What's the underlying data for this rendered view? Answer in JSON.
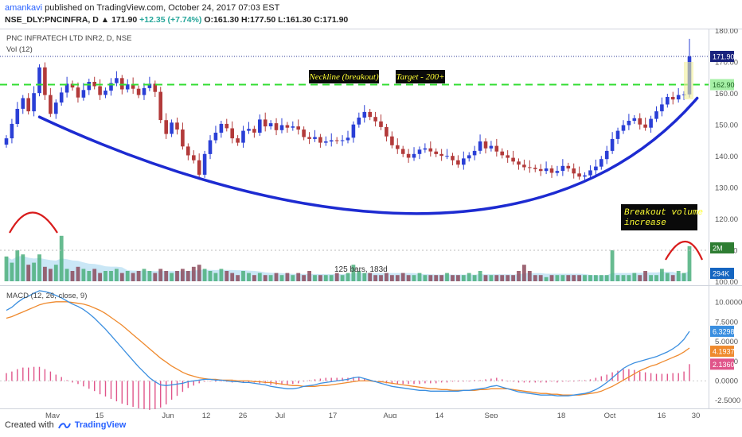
{
  "header": {
    "author": "amankavi",
    "published": "published on TradingView.com, October 24, 2017 07:03 EST",
    "symbol": "NSE_DLY:PNCINFRA, D",
    "last": "171.90",
    "change": "+12.35 (+7.74%)",
    "ohlc": "O:161.30 H:177.50 L:161.30 C:171.90"
  },
  "footer": {
    "created_with": "Created with",
    "brand": "TradingView"
  },
  "colors": {
    "up": "#2a3fd6",
    "down": "#b23a3a",
    "vol_up": "#4caf7d",
    "vol_down": "#8c4a5c",
    "trend": "#1d2bd1",
    "neckline": "#33dd33",
    "macd": "#3b8fe0",
    "signal": "#ef8a2e",
    "hist": "#e0558a"
  },
  "chart_data": [
    {
      "type": "candlestick",
      "title": "PNC INFRATECH LTD INR2, D, NSE",
      "ylim": [
        100,
        180
      ],
      "y_ticks": [
        "180.00",
        "170.00",
        "160.00",
        "150.00",
        "140.00",
        "130.00",
        "120.00",
        "110.00",
        "100.00"
      ],
      "x_ticks": [
        "May",
        "15",
        "Jun",
        "12",
        "26",
        "Jul",
        "17",
        "Aug",
        "14",
        "Sep",
        "18",
        "Oct",
        "16",
        "30"
      ],
      "price_labels": {
        "last": "171.90",
        "neckline": "162.90"
      },
      "neckline": 162.9,
      "annotations": [
        "Neckline (breakout)",
        "Target - 200+",
        "Breakout volume increase"
      ],
      "bars_label": "125 bars, 183d",
      "close": [
        145.8,
        150.4,
        155.2,
        158.6,
        154.4,
        160.2,
        168.4,
        159.6,
        153.6,
        157.2,
        160.4,
        163.2,
        162.0,
        158.8,
        161.2,
        163.8,
        162.4,
        159.6,
        161.0,
        163.4,
        165.0,
        161.4,
        163.0,
        161.6,
        159.6,
        161.8,
        163.2,
        160.6,
        151.6,
        147.2,
        150.8,
        148.6,
        143.2,
        140.4,
        138.8,
        134.2,
        140.8,
        145.2,
        147.6,
        150.4,
        149.0,
        145.8,
        144.4,
        148.2,
        148.8,
        147.6,
        151.8,
        149.6,
        150.6,
        148.4,
        150.0,
        149.2,
        149.6,
        148.6,
        146.2,
        145.6,
        146.2,
        144.4,
        144.8,
        145.2,
        145.0,
        145.2,
        146.0,
        150.2,
        152.4,
        154.2,
        152.6,
        151.2,
        149.4,
        146.4,
        143.6,
        142.4,
        140.8,
        139.6,
        140.8,
        142.2,
        142.6,
        141.6,
        140.8,
        140.2,
        140.2,
        138.8,
        137.4,
        139.4,
        140.4,
        141.8,
        144.8,
        142.6,
        143.4,
        141.6,
        140.4,
        139.6,
        138.4,
        137.4,
        136.6,
        136.4,
        136.0,
        135.4,
        136.2,
        134.8,
        135.4,
        137.0,
        136.2,
        134.6,
        133.6,
        134.0,
        135.6,
        136.8,
        139.2,
        141.8,
        145.6,
        148.2,
        150.0,
        151.4,
        152.2,
        150.2,
        149.2,
        152.0,
        154.4,
        156.6,
        159.0,
        158.2,
        159.6,
        159.8,
        171.9
      ],
      "volume_unit": "M",
      "volume_labels": [
        "2M",
        "294K"
      ],
      "volume": [
        1.2,
        0.9,
        1.5,
        1.3,
        0.8,
        0.9,
        1.3,
        0.7,
        0.6,
        0.8,
        2.2,
        0.6,
        0.5,
        0.7,
        0.6,
        0.5,
        0.6,
        0.4,
        0.5,
        0.5,
        0.6,
        0.4,
        0.5,
        0.4,
        0.5,
        0.6,
        0.5,
        0.4,
        0.6,
        0.5,
        0.4,
        0.5,
        0.6,
        0.5,
        0.7,
        0.8,
        0.6,
        0.5,
        0.4,
        0.6,
        0.5,
        0.4,
        0.3,
        0.5,
        0.4,
        0.3,
        0.4,
        0.3,
        0.3,
        0.4,
        0.3,
        0.4,
        0.3,
        0.4,
        0.3,
        0.5,
        0.3,
        0.3,
        0.3,
        0.3,
        0.4,
        0.3,
        0.4,
        0.8,
        0.5,
        0.4,
        0.4,
        0.3,
        0.3,
        0.4,
        0.3,
        0.3,
        0.4,
        0.3,
        0.3,
        0.4,
        0.3,
        0.3,
        0.3,
        0.3,
        0.4,
        0.3,
        0.3,
        0.3,
        0.4,
        0.3,
        0.5,
        0.3,
        0.3,
        0.3,
        0.3,
        0.3,
        0.3,
        0.5,
        0.8,
        0.5,
        0.3,
        0.3,
        0.2,
        0.3,
        0.3,
        0.3,
        0.3,
        0.3,
        0.3,
        0.3,
        0.3,
        0.3,
        0.3,
        0.3,
        1.5,
        0.3,
        0.3,
        0.3,
        0.4,
        0.3,
        0.5,
        0.3,
        0.3,
        0.6,
        0.4,
        0.3,
        0.5,
        0.4,
        1.7
      ]
    },
    {
      "type": "line",
      "title": "MACD (12, 26, close, 9)",
      "ylim": [
        -3.2,
        12
      ],
      "y_ticks": [
        "10.0000",
        "7.5000",
        "5.0000",
        "2.5000",
        "0.0000",
        "-2.5000"
      ],
      "value_labels": {
        "macd": "6.3298",
        "signal": "4.1937",
        "histogram": "2.1360"
      },
      "macd": [
        9.0,
        9.4,
        10.0,
        10.5,
        10.8,
        11.2,
        11.5,
        11.4,
        11.2,
        10.9,
        10.6,
        10.2,
        9.8,
        9.5,
        9.1,
        8.6,
        8.0,
        7.3,
        6.6,
        5.8,
        5.0,
        4.2,
        3.4,
        2.6,
        1.8,
        1.1,
        0.4,
        -0.1,
        -0.5,
        -0.6,
        -0.5,
        -0.4,
        -0.3,
        -0.1,
        0.0,
        0.1,
        0.2,
        0.2,
        0.1,
        0.1,
        0.0,
        -0.1,
        -0.1,
        -0.2,
        -0.2,
        -0.3,
        -0.4,
        -0.5,
        -0.7,
        -0.8,
        -0.9,
        -1.0,
        -1.0,
        -0.9,
        -0.7,
        -0.6,
        -0.5,
        -0.3,
        -0.2,
        -0.1,
        0.0,
        0.1,
        0.2,
        0.4,
        0.5,
        0.3,
        0.1,
        -0.1,
        -0.3,
        -0.5,
        -0.7,
        -0.8,
        -0.9,
        -1.0,
        -1.1,
        -1.2,
        -1.2,
        -1.3,
        -1.3,
        -1.3,
        -1.3,
        -1.3,
        -1.3,
        -1.2,
        -1.2,
        -1.1,
        -1.0,
        -0.9,
        -0.7,
        -0.6,
        -0.8,
        -1.0,
        -1.2,
        -1.4,
        -1.5,
        -1.6,
        -1.7,
        -1.8,
        -1.8,
        -1.8,
        -1.9,
        -1.9,
        -1.9,
        -1.8,
        -1.7,
        -1.6,
        -1.4,
        -1.1,
        -0.7,
        -0.2,
        0.4,
        1.0,
        1.6,
        2.0,
        2.3,
        2.5,
        2.7,
        2.9,
        3.1,
        3.4,
        3.7,
        4.1,
        4.6,
        5.3,
        6.3298
      ],
      "signal": [
        8.0,
        8.2,
        8.5,
        8.8,
        9.1,
        9.4,
        9.7,
        9.9,
        10.0,
        10.1,
        10.1,
        10.1,
        10.0,
        9.9,
        9.8,
        9.6,
        9.3,
        9.0,
        8.6,
        8.1,
        7.6,
        7.1,
        6.5,
        5.9,
        5.3,
        4.7,
        4.1,
        3.5,
        2.9,
        2.4,
        1.9,
        1.5,
        1.1,
        0.8,
        0.6,
        0.4,
        0.3,
        0.2,
        0.2,
        0.1,
        0.1,
        0.1,
        0.0,
        0.0,
        0.0,
        -0.1,
        -0.1,
        -0.2,
        -0.2,
        -0.3,
        -0.4,
        -0.5,
        -0.6,
        -0.6,
        -0.7,
        -0.7,
        -0.7,
        -0.6,
        -0.6,
        -0.5,
        -0.4,
        -0.3,
        -0.2,
        -0.1,
        0.0,
        0.0,
        0.0,
        -0.1,
        -0.1,
        -0.2,
        -0.3,
        -0.4,
        -0.5,
        -0.6,
        -0.7,
        -0.8,
        -0.9,
        -1.0,
        -1.0,
        -1.1,
        -1.1,
        -1.2,
        -1.2,
        -1.2,
        -1.2,
        -1.2,
        -1.1,
        -1.1,
        -1.0,
        -1.0,
        -1.0,
        -1.0,
        -1.1,
        -1.2,
        -1.3,
        -1.4,
        -1.5,
        -1.6,
        -1.6,
        -1.7,
        -1.7,
        -1.8,
        -1.8,
        -1.8,
        -1.8,
        -1.7,
        -1.6,
        -1.5,
        -1.3,
        -1.0,
        -0.7,
        -0.3,
        0.1,
        0.5,
        0.9,
        1.3,
        1.6,
        1.9,
        2.1,
        2.4,
        2.7,
        3.0,
        3.3,
        3.7,
        4.1937
      ],
      "histogram": [
        1.0,
        1.2,
        1.5,
        1.7,
        1.7,
        1.8,
        1.8,
        1.5,
        1.2,
        0.8,
        0.5,
        0.1,
        -0.2,
        -0.4,
        -0.7,
        -1.0,
        -1.3,
        -1.7,
        -2.0,
        -2.3,
        -2.6,
        -2.9,
        -3.1,
        -3.3,
        -3.5,
        -3.6,
        -3.7,
        -3.6,
        -3.4,
        -3.0,
        -2.4,
        -1.9,
        -1.4,
        -0.9,
        -0.6,
        -0.3,
        -0.1,
        0.0,
        -0.1,
        0.0,
        -0.1,
        -0.2,
        -0.1,
        -0.2,
        -0.2,
        -0.2,
        -0.3,
        -0.3,
        -0.5,
        -0.5,
        -0.5,
        -0.5,
        -0.4,
        -0.3,
        0.0,
        0.1,
        0.2,
        0.3,
        0.4,
        0.4,
        0.4,
        0.4,
        0.4,
        0.5,
        0.5,
        0.3,
        0.1,
        0.0,
        -0.2,
        -0.3,
        -0.4,
        -0.4,
        -0.4,
        -0.4,
        -0.4,
        -0.4,
        -0.3,
        -0.3,
        -0.3,
        -0.2,
        -0.2,
        -0.1,
        -0.1,
        0.0,
        0.0,
        0.1,
        0.1,
        0.2,
        0.3,
        0.4,
        0.2,
        0.0,
        -0.1,
        -0.2,
        -0.2,
        -0.2,
        -0.2,
        -0.2,
        -0.2,
        -0.1,
        -0.2,
        -0.1,
        -0.1,
        0.0,
        0.1,
        0.1,
        0.2,
        0.4,
        0.6,
        0.8,
        1.1,
        1.3,
        1.5,
        1.5,
        1.4,
        1.2,
        1.1,
        1.0,
        0.9,
        0.9,
        0.9,
        1.0,
        1.0,
        1.2,
        2.136
      ]
    }
  ]
}
